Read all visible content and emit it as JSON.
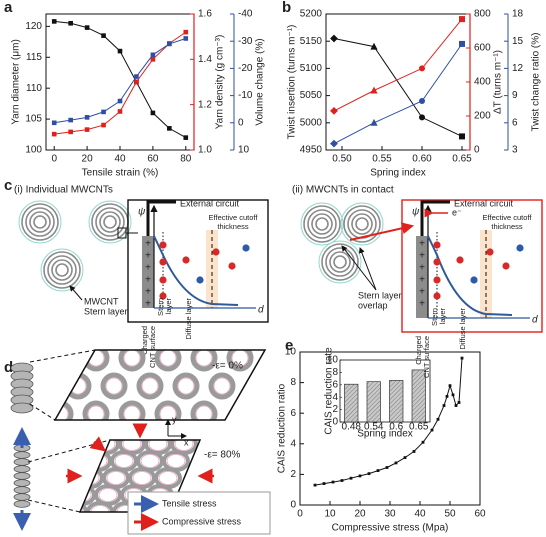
{
  "chart_data": [
    {
      "type": "line",
      "panel_label": "a",
      "x": [
        0,
        10,
        20,
        30,
        40,
        50,
        60,
        70,
        80
      ],
      "xlim": [
        -5,
        85
      ],
      "xticks": [
        0,
        20,
        40,
        60,
        80
      ],
      "x_label": "Tensile strain (%)",
      "ylim": [
        100,
        122
      ],
      "yticks": [
        100,
        105,
        110,
        115,
        120
      ],
      "y_label": "Yarn diameter (μm)",
      "y2lim": [
        1.0,
        1.6
      ],
      "y2ticks": [
        {
          "value": 1.0,
          "label": "1.0"
        },
        {
          "value": 1.2,
          "label": "1.2"
        },
        {
          "value": 1.4,
          "label": "1.4"
        },
        {
          "value": 1.6,
          "label": "1.6"
        }
      ],
      "y2_label": "Yarn density (g cm⁻³)",
      "y3lim": [
        10,
        -40
      ],
      "y3ticks": [
        10,
        0,
        -10,
        -20,
        -30,
        -40
      ],
      "y3_label": "Volume change (%)",
      "series": [
        {
          "name": "Yarn diameter",
          "color": "#111111",
          "marker": "square",
          "values": [
            120.8,
            120.5,
            119.8,
            118.5,
            116,
            111,
            106,
            103.5,
            102
          ]
        },
        {
          "name": "Yarn density",
          "color": "#e0201c",
          "marker": "square",
          "axis": "y2",
          "values": [
            1.07,
            1.08,
            1.09,
            1.11,
            1.17,
            1.3,
            1.4,
            1.47,
            1.52
          ]
        },
        {
          "name": "Volume change",
          "color": "#2f4fa3",
          "marker": "square",
          "axis": "y3",
          "values": [
            0,
            -1,
            -2,
            -4,
            -8,
            -17,
            -25,
            -29,
            -31
          ]
        }
      ]
    },
    {
      "type": "line",
      "panel_label": "b",
      "x": [
        0.49,
        0.54,
        0.6,
        0.65
      ],
      "xlim": [
        0.48,
        0.66
      ],
      "xticks": [
        {
          "value": 0.5,
          "label": "0.50"
        },
        {
          "value": 0.55,
          "label": "0.55"
        },
        {
          "value": 0.6,
          "label": "0.60"
        },
        {
          "value": 0.65,
          "label": "0.65"
        }
      ],
      "x_label": "Spring index",
      "markers": [
        "diamond",
        "triangle",
        "circle",
        "square"
      ],
      "ylim": [
        4950,
        5200
      ],
      "yticks": [
        4950,
        5000,
        5050,
        5100,
        5150,
        5200
      ],
      "y_label": "Twist insertion (turns m⁻¹)",
      "y2lim": [
        0,
        800
      ],
      "y2ticks": [
        0,
        200,
        400,
        600,
        800
      ],
      "y2_label": "ΔT (turns m⁻¹)",
      "y3lim": [
        3,
        18
      ],
      "y3ticks": [
        3,
        6,
        9,
        12,
        15,
        18
      ],
      "y3_label": "Twist change ratio (%)",
      "series": [
        {
          "name": "Twist insertion",
          "color": "#111111",
          "values": [
            5155,
            5140,
            5010,
            4975
          ]
        },
        {
          "name": "ΔT",
          "color": "#e0201c",
          "axis": "y2",
          "values": [
            230,
            350,
            480,
            770
          ]
        },
        {
          "name": "Twist change ratio",
          "color": "#2f4fa3",
          "axis": "y3",
          "values": [
            3.7,
            6,
            8.4,
            14.7
          ]
        }
      ]
    },
    {
      "type": "line",
      "panel_label": "e",
      "x": [
        5,
        8,
        11,
        14,
        17,
        20,
        23,
        26,
        29,
        32,
        35,
        38,
        41,
        44,
        46,
        48,
        49,
        50,
        51,
        52,
        53,
        54
      ],
      "xlim": [
        0,
        60
      ],
      "xticks": [
        0,
        10,
        20,
        30,
        40,
        50,
        60
      ],
      "x_label": "Compressive stress (Mpa)",
      "ylim": [
        0,
        10
      ],
      "yticks": [
        0,
        2,
        4,
        6,
        8,
        10
      ],
      "y_label": "CAIS reduction ratio",
      "series": [
        {
          "name": "CAIS reduction ratio",
          "color": "#111111",
          "marker": "square",
          "values": [
            1.3,
            1.4,
            1.5,
            1.6,
            1.75,
            1.9,
            2.05,
            2.25,
            2.45,
            2.75,
            3.1,
            3.5,
            4.1,
            4.9,
            5.6,
            6.5,
            7.1,
            7.8,
            7.2,
            6.5,
            6.7,
            9.6
          ]
        }
      ]
    },
    {
      "type": "bar",
      "categories": [
        "0.48",
        "0.54",
        "0.6",
        "0.65"
      ],
      "values": [
        6.1,
        6.5,
        6.7,
        8.4
      ],
      "color": "#c8c8c8",
      "x_label": "Spring index",
      "y_label": "CAIS reduction rate",
      "ylim": [
        0,
        10
      ],
      "yticks": [
        0,
        2,
        4,
        6,
        8,
        10
      ]
    }
  ],
  "panel_c": {
    "panel_label": "c",
    "left": {
      "title": "(i) Individual MWCNTs",
      "external_circuit": "External circuit",
      "psi": "ψ",
      "cutoff": [
        "Effective cutoff",
        "thickness"
      ],
      "mwcnt": "MWCNT",
      "stern": "Stern layer",
      "charged": [
        "Charged",
        "CNT surface"
      ],
      "stern_axis": [
        "Stern",
        "layer"
      ],
      "diffuse": "Diffuse layer",
      "d": "d"
    },
    "right": {
      "title": "(ii) MWCNTs in contact",
      "external_circuit": "External circuit",
      "electron": "e⁻",
      "psi": "ψ",
      "cutoff": [
        "Effective cutoff",
        "thickness"
      ],
      "overlap": [
        "Stern layer",
        "overlap"
      ],
      "charged": [
        "Charged",
        "CNT surface"
      ],
      "stern_axis": [
        "Stern",
        "layer"
      ],
      "diffuse": "Diffuse layer",
      "d": "d"
    }
  },
  "panel_d": {
    "panel_label": "d",
    "strain_0": "-ε= 0%",
    "strain_80": "-ε= 80%",
    "axis_x": "x",
    "axis_y": "y",
    "legend": [
      "Tensile stress",
      "Compressive stress"
    ]
  }
}
